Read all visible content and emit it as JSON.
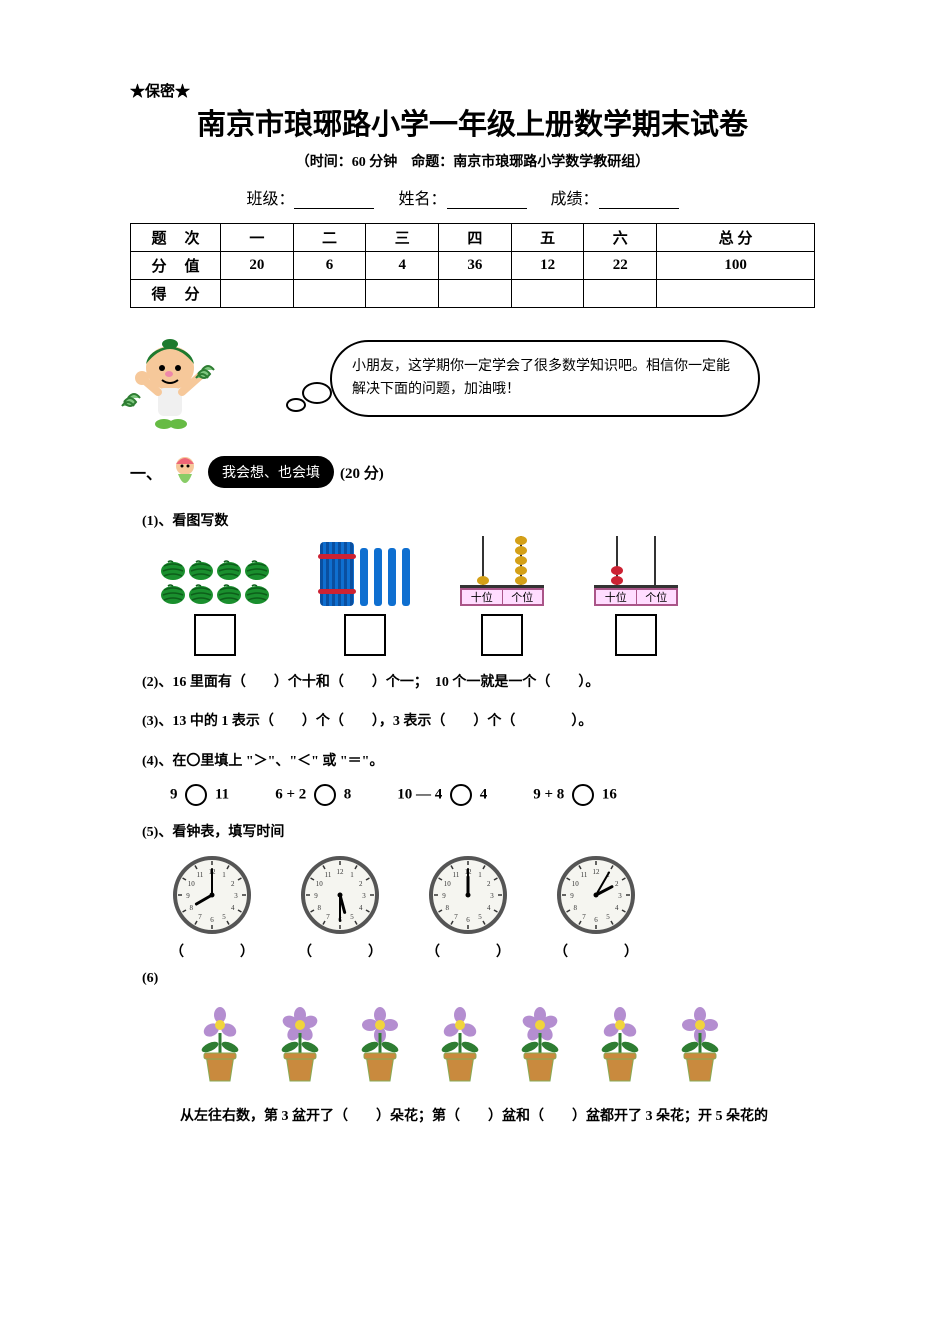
{
  "confidential": "★保密★",
  "title": "南京市琅琊路小学一年级上册数学期末试卷",
  "subtitle": "（时间：60 分钟　命题：南京市琅琊路小学数学教研组）",
  "fields": {
    "class": "班级：",
    "name": "姓名：",
    "score": "成绩："
  },
  "scoreTable": {
    "rowLabels": [
      "题次",
      "分值",
      "得分"
    ],
    "cols": [
      "一",
      "二",
      "三",
      "四",
      "五",
      "六",
      "总 分"
    ],
    "vals": [
      "20",
      "6",
      "4",
      "36",
      "12",
      "22",
      "100"
    ]
  },
  "speech": "小朋友，这学期你一定学会了很多数学知识吧。相信你一定能解决下面的问题，加油哦！",
  "section1": {
    "num": "一、",
    "bubble": "我会想、也会填",
    "pts": "(20 分)"
  },
  "q1": {
    "label": "(1)、看图写数",
    "abacus": {
      "tens": "十位",
      "ones": "个位"
    },
    "abacus1": {
      "tensBeads": 1,
      "onesBeads": 5,
      "tensColor": "#d4a017",
      "onesColor": "#d4a017"
    },
    "abacus2": {
      "tensBeads": 2,
      "onesBeads": 0,
      "tensColor": "#c23",
      "onesColor": "#c23"
    }
  },
  "q2": "(2)、16 里面有（　　）个十和（　　）个一；　10 个一就是一个（　　）。",
  "q3": "(3)、13 中的 1 表示（　　）个（　　），3 表示（　　）个（　　　　）。",
  "q4": {
    "label": "(4)、在〇里填上 \"＞\"、\"＜\" 或 \"＝\"。",
    "items": [
      {
        "l": "9",
        "r": "11"
      },
      {
        "l": "6 + 2",
        "r": "8"
      },
      {
        "l": "10 — 4",
        "r": "4"
      },
      {
        "l": "9 + 8",
        "r": "16"
      }
    ]
  },
  "q5": {
    "label": "(5)、看钟表，填写时间",
    "clocks": [
      {
        "h": 8,
        "m": 0
      },
      {
        "h": 5,
        "m": 30
      },
      {
        "h": 12,
        "m": 0
      },
      {
        "h": 2,
        "m": 5
      }
    ],
    "paren": "（　　　　）"
  },
  "q6": {
    "label": "(6)",
    "flowerCounts": [
      3,
      5,
      4,
      3,
      5,
      3,
      4
    ],
    "text": "从左往右数，第 3 盆开了（　　）朵花；第（　　）盆和（　　）盆都开了 3 朵花；开 5 朵花的"
  },
  "colors": {
    "watermelon": "#1a8f2e",
    "watermelonStripe": "#0d5e1a",
    "flowerPetal": "#b48ed0",
    "flowerCenter": "#f0d43c",
    "leaf": "#2e7d32",
    "pot": "#c98a3e",
    "clockFace": "#f5f5f0",
    "clockRing": "#555"
  }
}
